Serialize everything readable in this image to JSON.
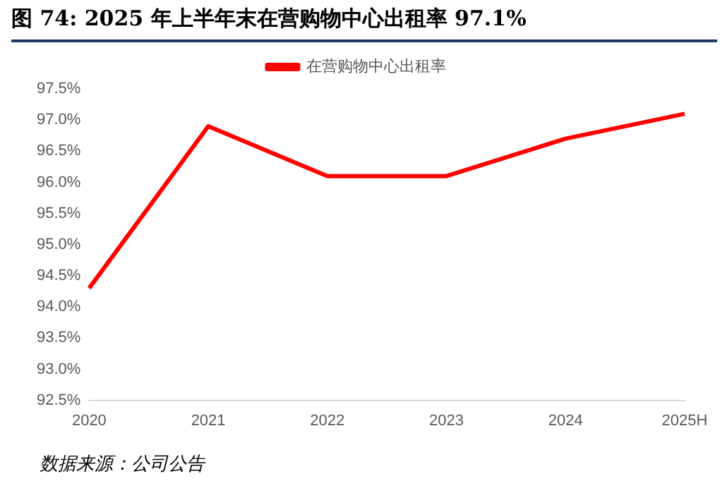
{
  "chart_data": {
    "type": "line",
    "title": "图 74: 2025 年上半年末在营购物中心出租率 97.1%",
    "categories": [
      "2020",
      "2021",
      "2022",
      "2023",
      "2024",
      "2025H"
    ],
    "series": [
      {
        "name": "在营购物中心出租率",
        "color": "#ff0000",
        "values": [
          94.3,
          96.9,
          96.1,
          96.1,
          96.7,
          97.1
        ]
      }
    ],
    "ylim": [
      92.5,
      97.5
    ],
    "yticks": [
      {
        "value": 92.5,
        "label": "92.5%"
      },
      {
        "value": 93,
        "label": "93.0%"
      },
      {
        "value": 93.5,
        "label": "93.5%"
      },
      {
        "value": 94,
        "label": "94.0%"
      },
      {
        "value": 94.5,
        "label": "94.5%"
      },
      {
        "value": 95,
        "label": "95.0%"
      },
      {
        "value": 95.5,
        "label": "95.5%"
      },
      {
        "value": 96,
        "label": "96.0%"
      },
      {
        "value": 96.5,
        "label": "96.5%"
      },
      {
        "value": 97,
        "label": "97.0%"
      },
      {
        "value": 97.5,
        "label": "97.5%"
      }
    ],
    "legend": "top",
    "grid": false,
    "marker": "none",
    "annotations": [
      "数据来源：公司公告"
    ]
  }
}
